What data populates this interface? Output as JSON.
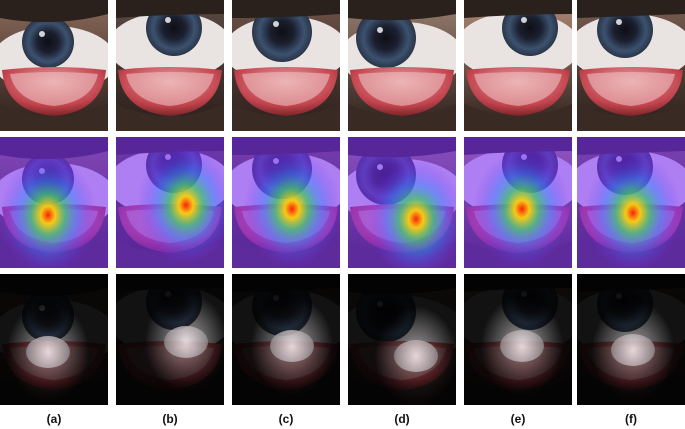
{
  "figure": {
    "panels": [
      {
        "label": "(a)"
      },
      {
        "label": "(b)"
      },
      {
        "label": "(c)"
      },
      {
        "label": "(d)"
      },
      {
        "label": "(e)"
      },
      {
        "label": "(f)"
      }
    ],
    "rows": [
      "eye photo",
      "attention heatmap overlay",
      "masked attention image"
    ]
  }
}
